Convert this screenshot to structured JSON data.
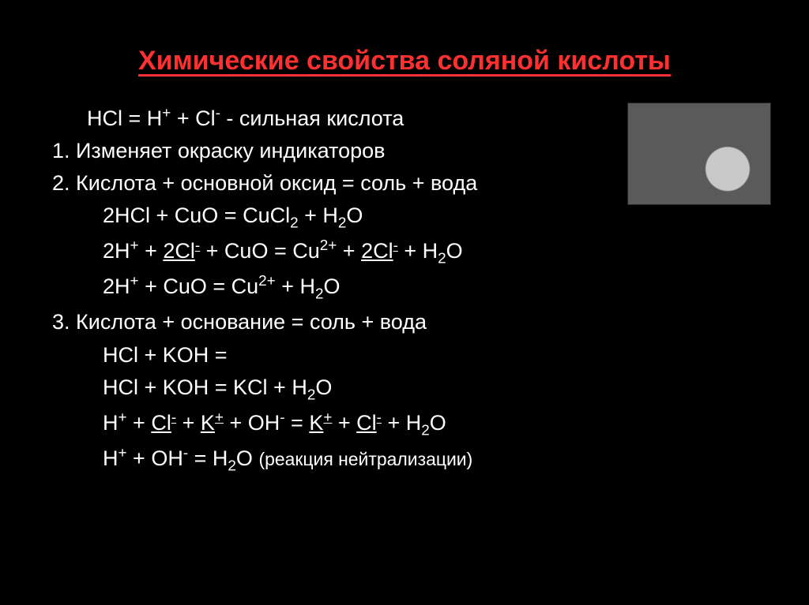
{
  "slide": {
    "title": "Химические свойства соляной кислоты",
    "title_color": "#ff3030",
    "text_color": "#ffffff",
    "background_color": "#000000",
    "font_family": "Arial",
    "title_fontsize": 34,
    "body_fontsize": 27,
    "lines": {
      "eq_dissoc_a": "HCl = H",
      "eq_dissoc_b": " + Cl",
      "eq_dissoc_tail": "   -  сильная кислота",
      "p1": "1. Изменяет окраску индикаторов",
      "p2": "2. Кислота + основной оксид = соль + вода",
      "r2a": "2HCl + CuO = CuCl",
      "r2a2": " + H",
      "r2a3": "O",
      "r2b_a": "2H",
      "r2b_b": " + ",
      "r2b_c": "2Cl",
      "r2b_d": " + CuO = Cu",
      "r2b_e": " + ",
      "r2b_f": "2Cl",
      "r2b_g": " + H",
      "r2b_h": "O",
      "r2c_a": "2H",
      "r2c_b": " + CuO = Cu",
      "r2c_c": " + H",
      "r2c_d": "O",
      "p3": "3. Кислота + основание = соль + вода",
      "r3a": "HCl + KOH =",
      "r3b_a": "HCl + KOH = KCl + H",
      "r3b_b": "O",
      "r3c_a": "H",
      "r3c_b": " + ",
      "r3c_c": "Cl",
      "r3c_d": " + ",
      "r3c_e": "K",
      "r3c_f": " + OH",
      "r3c_g": " = ",
      "r3c_h": "K",
      "r3c_i": " + ",
      "r3c_j": "Cl",
      "r3c_k": " + H",
      "r3c_l": "O",
      "r3d_a": "H",
      "r3d_b": " + OH",
      "r3d_c": " = H",
      "r3d_d": "O   ",
      "r3d_note": "(реакция нейтрализации)"
    },
    "sup_plus": "+",
    "sup_minus": "-",
    "sup_2plus": "2+",
    "sub_2": "2"
  }
}
